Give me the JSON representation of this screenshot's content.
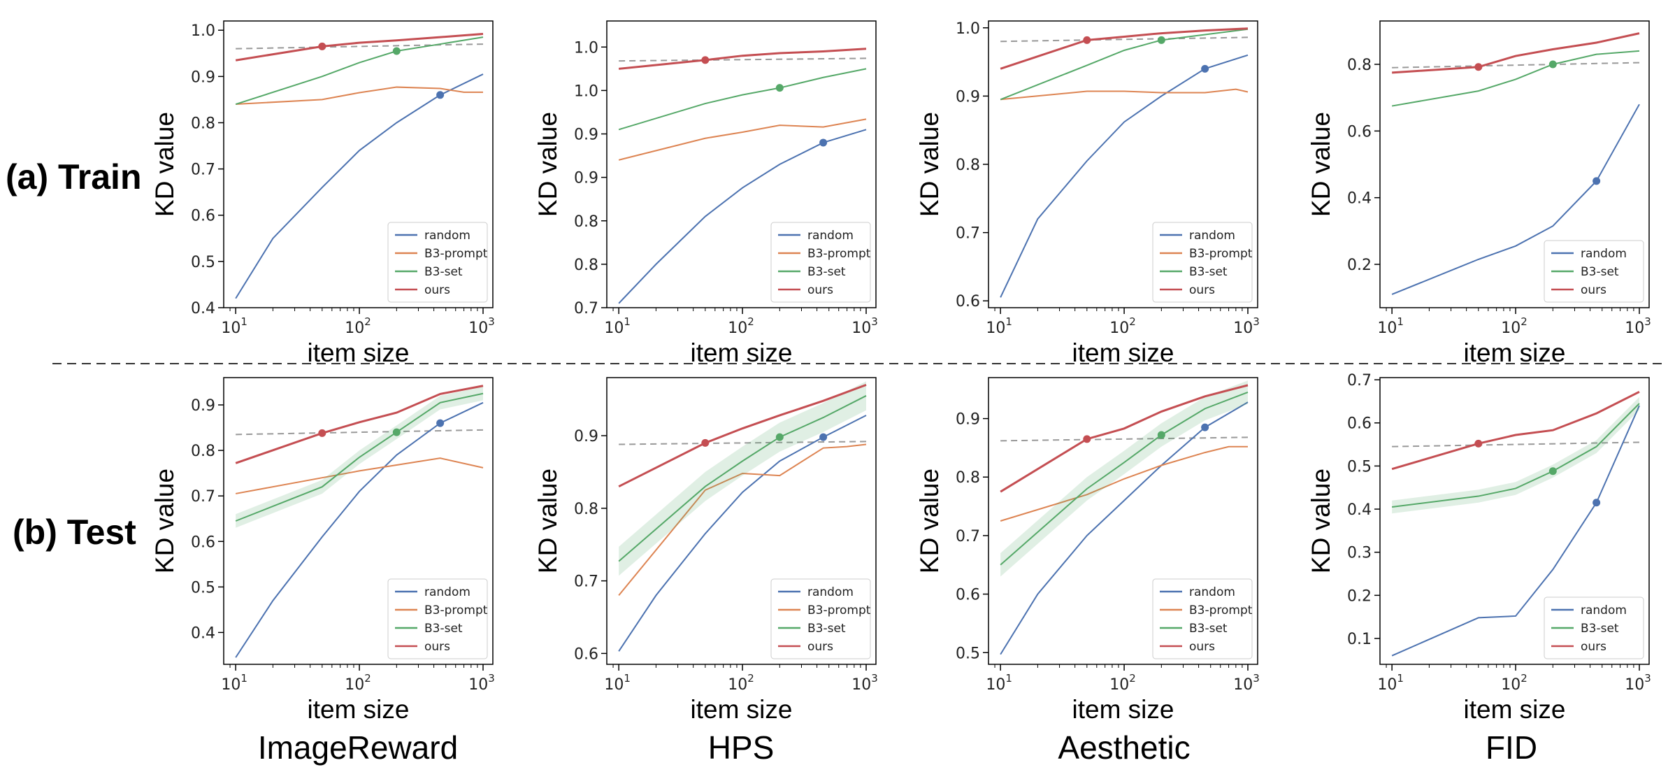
{
  "row_labels": [
    "(a) Train",
    "(b) Test"
  ],
  "column_labels": [
    "ImageReward",
    "HPS",
    "Aesthetic",
    "FID"
  ],
  "colors": {
    "random": "#4c72b0",
    "B3-prompt": "#dd8452",
    "B3-set": "#55a868",
    "ours": "#c44e52",
    "reference": "#999999"
  },
  "chart_data": [
    {
      "type": "line",
      "row": 0,
      "col": 0,
      "xlabel": "item size",
      "ylabel": "KD value",
      "xscale": "log",
      "xlim": [
        8,
        1200
      ],
      "ylim": [
        0.4,
        1.02
      ],
      "xticks": [
        10,
        100,
        1000
      ],
      "yticks": [
        0.4,
        0.5,
        0.6,
        0.7,
        0.8,
        0.9,
        1.0
      ],
      "ytick_labels": [
        "0.4",
        "0.5",
        "0.6",
        "0.7",
        "0.8",
        "0.9",
        "1.0"
      ],
      "legend": [
        "random",
        "B3-prompt",
        "B3-set",
        "ours"
      ],
      "legend_loc": "lower right",
      "reference_line": [
        10,
        0.96,
        1000,
        0.97
      ],
      "series": [
        {
          "name": "random",
          "x": [
            10,
            20,
            50,
            100,
            200,
            450,
            1000
          ],
          "y": [
            0.42,
            0.55,
            0.66,
            0.74,
            0.8,
            0.86,
            0.905
          ],
          "marker": [
            450,
            0.86
          ]
        },
        {
          "name": "B3-prompt",
          "x": [
            10,
            50,
            100,
            200,
            450,
            700,
            1000
          ],
          "y": [
            0.84,
            0.85,
            0.865,
            0.877,
            0.874,
            0.866,
            0.866
          ]
        },
        {
          "name": "B3-set",
          "x": [
            10,
            50,
            100,
            200,
            450,
            1000
          ],
          "y": [
            0.84,
            0.9,
            0.93,
            0.955,
            0.97,
            0.985
          ],
          "marker": [
            200,
            0.955
          ]
        },
        {
          "name": "ours",
          "x": [
            10,
            50,
            100,
            200,
            450,
            1000
          ],
          "y": [
            0.935,
            0.965,
            0.973,
            0.978,
            0.985,
            0.992
          ],
          "marker": [
            50,
            0.965
          ]
        }
      ]
    },
    {
      "type": "line",
      "row": 0,
      "col": 1,
      "xlabel": "item size",
      "ylabel": "KD value",
      "xscale": "log",
      "xlim": [
        8,
        1200
      ],
      "ylim": [
        0.7,
        1.03
      ],
      "xticks": [
        10,
        100,
        1000
      ],
      "yticks": [
        0.7,
        0.75,
        0.8,
        0.85,
        0.9,
        0.95,
        1.0
      ],
      "ytick_labels": [
        "0.7",
        "0.8",
        "0.8",
        "0.9",
        "0.9",
        "1.0",
        "1.0"
      ],
      "legend": [
        "random",
        "B3-prompt",
        "B3-set",
        "ours"
      ],
      "legend_loc": "lower right",
      "reference_line": [
        10,
        0.984,
        1000,
        0.987
      ],
      "series": [
        {
          "name": "random",
          "x": [
            10,
            20,
            50,
            100,
            200,
            450,
            1000
          ],
          "y": [
            0.705,
            0.75,
            0.805,
            0.838,
            0.865,
            0.89,
            0.905
          ],
          "marker": [
            450,
            0.89
          ]
        },
        {
          "name": "B3-prompt",
          "x": [
            10,
            50,
            100,
            200,
            450,
            1000
          ],
          "y": [
            0.87,
            0.895,
            0.902,
            0.91,
            0.908,
            0.917
          ]
        },
        {
          "name": "B3-set",
          "x": [
            10,
            50,
            100,
            200,
            450,
            1000
          ],
          "y": [
            0.905,
            0.935,
            0.945,
            0.953,
            0.965,
            0.975
          ],
          "marker": [
            200,
            0.953
          ]
        },
        {
          "name": "ours",
          "x": [
            10,
            50,
            100,
            200,
            450,
            1000
          ],
          "y": [
            0.975,
            0.985,
            0.99,
            0.993,
            0.995,
            0.998
          ],
          "marker": [
            50,
            0.985
          ]
        }
      ]
    },
    {
      "type": "line",
      "row": 0,
      "col": 2,
      "xlabel": "item size",
      "ylabel": "KD value",
      "xscale": "log",
      "xlim": [
        8,
        1200
      ],
      "ylim": [
        0.59,
        1.01
      ],
      "xticks": [
        10,
        100,
        1000
      ],
      "yticks": [
        0.6,
        0.7,
        0.8,
        0.9,
        1.0
      ],
      "ytick_labels": [
        "0.6",
        "0.7",
        "0.8",
        "0.9",
        "1.0"
      ],
      "legend": [
        "random",
        "B3-prompt",
        "B3-set",
        "ours"
      ],
      "legend_loc": "lower right",
      "reference_line": [
        10,
        0.98,
        1000,
        0.986
      ],
      "series": [
        {
          "name": "random",
          "x": [
            10,
            20,
            50,
            100,
            200,
            450,
            1000
          ],
          "y": [
            0.605,
            0.72,
            0.805,
            0.862,
            0.9,
            0.94,
            0.96
          ],
          "marker": [
            450,
            0.94
          ]
        },
        {
          "name": "B3-prompt",
          "x": [
            10,
            50,
            100,
            200,
            450,
            800,
            1000
          ],
          "y": [
            0.895,
            0.907,
            0.907,
            0.905,
            0.905,
            0.91,
            0.906
          ]
        },
        {
          "name": "B3-set",
          "x": [
            10,
            50,
            100,
            200,
            450,
            1000
          ],
          "y": [
            0.895,
            0.945,
            0.967,
            0.982,
            0.99,
            0.998
          ],
          "marker": [
            200,
            0.982
          ]
        },
        {
          "name": "ours",
          "x": [
            10,
            50,
            100,
            200,
            450,
            1000
          ],
          "y": [
            0.94,
            0.982,
            0.987,
            0.992,
            0.996,
            0.999
          ],
          "marker": [
            50,
            0.982
          ]
        }
      ]
    },
    {
      "type": "line",
      "row": 0,
      "col": 3,
      "xlabel": "item size",
      "ylabel": "KD value",
      "xscale": "log",
      "xlim": [
        8,
        1200
      ],
      "ylim": [
        0.07,
        0.93
      ],
      "xticks": [
        10,
        100,
        1000
      ],
      "yticks": [
        0.2,
        0.4,
        0.6,
        0.8
      ],
      "ytick_labels": [
        "0.2",
        "0.4",
        "0.6",
        "0.8"
      ],
      "legend": [
        "random",
        "B3-set",
        "ours"
      ],
      "legend_loc": "lower right",
      "reference_line": [
        10,
        0.79,
        1000,
        0.805
      ],
      "series": [
        {
          "name": "random",
          "x": [
            10,
            50,
            100,
            200,
            450,
            1000
          ],
          "y": [
            0.11,
            0.215,
            0.255,
            0.315,
            0.45,
            0.68
          ],
          "marker": [
            450,
            0.45
          ]
        },
        {
          "name": "B3-set",
          "x": [
            10,
            50,
            100,
            200,
            450,
            1000
          ],
          "y": [
            0.675,
            0.72,
            0.755,
            0.8,
            0.83,
            0.84
          ],
          "marker": [
            200,
            0.8
          ]
        },
        {
          "name": "ours",
          "x": [
            10,
            50,
            100,
            200,
            450,
            1000
          ],
          "y": [
            0.775,
            0.792,
            0.825,
            0.845,
            0.865,
            0.893
          ],
          "marker": [
            50,
            0.792
          ]
        }
      ]
    },
    {
      "type": "line",
      "row": 1,
      "col": 0,
      "xlabel": "item size",
      "ylabel": "KD value",
      "xscale": "log",
      "xlim": [
        8,
        1200
      ],
      "ylim": [
        0.33,
        0.96
      ],
      "xticks": [
        10,
        100,
        1000
      ],
      "yticks": [
        0.4,
        0.5,
        0.6,
        0.7,
        0.8,
        0.9
      ],
      "ytick_labels": [
        "0.4",
        "0.5",
        "0.6",
        "0.7",
        "0.8",
        "0.9"
      ],
      "legend": [
        "random",
        "B3-prompt",
        "B3-set",
        "ours"
      ],
      "legend_loc": "lower right",
      "reference_line": [
        10,
        0.835,
        1000,
        0.845
      ],
      "series": [
        {
          "name": "random",
          "x": [
            10,
            20,
            50,
            100,
            200,
            450,
            1000
          ],
          "y": [
            0.345,
            0.47,
            0.61,
            0.71,
            0.79,
            0.86,
            0.905
          ],
          "marker": [
            450,
            0.86
          ]
        },
        {
          "name": "B3-prompt",
          "x": [
            10,
            50,
            100,
            200,
            450,
            1000
          ],
          "y": [
            0.705,
            0.74,
            0.755,
            0.768,
            0.783,
            0.762
          ]
        },
        {
          "name": "B3-set",
          "x": [
            10,
            50,
            100,
            200,
            450,
            1000
          ],
          "y": [
            0.645,
            0.72,
            0.785,
            0.84,
            0.905,
            0.925
          ],
          "marker": [
            200,
            0.84
          ],
          "band": 0.015
        },
        {
          "name": "ours",
          "x": [
            10,
            50,
            100,
            200,
            450,
            1000
          ],
          "y": [
            0.772,
            0.838,
            0.862,
            0.883,
            0.924,
            0.942
          ],
          "marker": [
            50,
            0.838
          ]
        }
      ]
    },
    {
      "type": "line",
      "row": 1,
      "col": 1,
      "xlabel": "item size",
      "ylabel": "KD value",
      "xscale": "log",
      "xlim": [
        8,
        1200
      ],
      "ylim": [
        0.585,
        0.98
      ],
      "xticks": [
        10,
        100,
        1000
      ],
      "yticks": [
        0.6,
        0.7,
        0.8,
        0.9
      ],
      "ytick_labels": [
        "0.6",
        "0.7",
        "0.8",
        "0.9"
      ],
      "legend": [
        "random",
        "B3-prompt",
        "B3-set",
        "ours"
      ],
      "legend_loc": "lower right",
      "reference_line": [
        10,
        0.888,
        1000,
        0.892
      ],
      "series": [
        {
          "name": "random",
          "x": [
            10,
            20,
            50,
            100,
            200,
            450,
            1000
          ],
          "y": [
            0.603,
            0.68,
            0.765,
            0.822,
            0.865,
            0.898,
            0.928
          ],
          "marker": [
            450,
            0.898
          ]
        },
        {
          "name": "B3-prompt",
          "x": [
            10,
            50,
            100,
            200,
            450,
            700,
            1000
          ],
          "y": [
            0.68,
            0.825,
            0.848,
            0.845,
            0.883,
            0.885,
            0.888
          ]
        },
        {
          "name": "B3-set",
          "x": [
            10,
            50,
            100,
            200,
            450,
            1000
          ],
          "y": [
            0.727,
            0.83,
            0.865,
            0.898,
            0.925,
            0.955
          ],
          "marker": [
            200,
            0.898
          ],
          "band": 0.02
        },
        {
          "name": "ours",
          "x": [
            10,
            50,
            100,
            200,
            450,
            1000
          ],
          "y": [
            0.83,
            0.89,
            0.91,
            0.928,
            0.948,
            0.97
          ],
          "marker": [
            50,
            0.89
          ]
        }
      ]
    },
    {
      "type": "line",
      "row": 1,
      "col": 2,
      "xlabel": "item size",
      "ylabel": "KD value",
      "xscale": "log",
      "xlim": [
        8,
        1200
      ],
      "ylim": [
        0.48,
        0.97
      ],
      "xticks": [
        10,
        100,
        1000
      ],
      "yticks": [
        0.5,
        0.6,
        0.7,
        0.8,
        0.9
      ],
      "ytick_labels": [
        "0.5",
        "0.6",
        "0.7",
        "0.8",
        "0.9"
      ],
      "legend": [
        "random",
        "B3-prompt",
        "B3-set",
        "ours"
      ],
      "legend_loc": "lower right",
      "reference_line": [
        10,
        0.862,
        1000,
        0.868
      ],
      "series": [
        {
          "name": "random",
          "x": [
            10,
            20,
            50,
            100,
            200,
            450,
            1000
          ],
          "y": [
            0.497,
            0.6,
            0.7,
            0.76,
            0.82,
            0.885,
            0.928
          ],
          "marker": [
            450,
            0.885
          ]
        },
        {
          "name": "B3-prompt",
          "x": [
            10,
            50,
            100,
            200,
            450,
            700,
            1000
          ],
          "y": [
            0.725,
            0.77,
            0.797,
            0.82,
            0.842,
            0.852,
            0.852
          ]
        },
        {
          "name": "B3-set",
          "x": [
            10,
            50,
            100,
            200,
            450,
            1000
          ],
          "y": [
            0.65,
            0.78,
            0.825,
            0.872,
            0.917,
            0.945
          ],
          "marker": [
            200,
            0.872
          ],
          "band": 0.02
        },
        {
          "name": "ours",
          "x": [
            10,
            50,
            100,
            200,
            450,
            1000
          ],
          "y": [
            0.775,
            0.865,
            0.883,
            0.912,
            0.938,
            0.957
          ],
          "marker": [
            50,
            0.865
          ]
        }
      ]
    },
    {
      "type": "line",
      "row": 1,
      "col": 3,
      "xlabel": "item size",
      "ylabel": "KD value",
      "xscale": "log",
      "xlim": [
        8,
        1200
      ],
      "ylim": [
        0.04,
        0.705
      ],
      "xticks": [
        10,
        100,
        1000
      ],
      "yticks": [
        0.1,
        0.2,
        0.3,
        0.4,
        0.5,
        0.6,
        0.7
      ],
      "ytick_labels": [
        "0.1",
        "0.2",
        "0.3",
        "0.4",
        "0.5",
        "0.6",
        "0.7"
      ],
      "legend": [
        "random",
        "B3-set",
        "ours"
      ],
      "legend_loc": "lower right",
      "reference_line": [
        10,
        0.545,
        1000,
        0.555
      ],
      "series": [
        {
          "name": "random",
          "x": [
            10,
            50,
            100,
            200,
            450,
            1000
          ],
          "y": [
            0.06,
            0.148,
            0.152,
            0.26,
            0.415,
            0.64
          ],
          "marker": [
            450,
            0.415
          ]
        },
        {
          "name": "B3-set",
          "x": [
            10,
            50,
            100,
            200,
            450,
            1000
          ],
          "y": [
            0.405,
            0.43,
            0.448,
            0.488,
            0.545,
            0.645
          ],
          "marker": [
            200,
            0.488
          ],
          "band": 0.015
        },
        {
          "name": "ours",
          "x": [
            10,
            50,
            100,
            200,
            450,
            1000
          ],
          "y": [
            0.493,
            0.552,
            0.572,
            0.583,
            0.622,
            0.672
          ],
          "marker": [
            50,
            0.552
          ]
        }
      ]
    }
  ]
}
